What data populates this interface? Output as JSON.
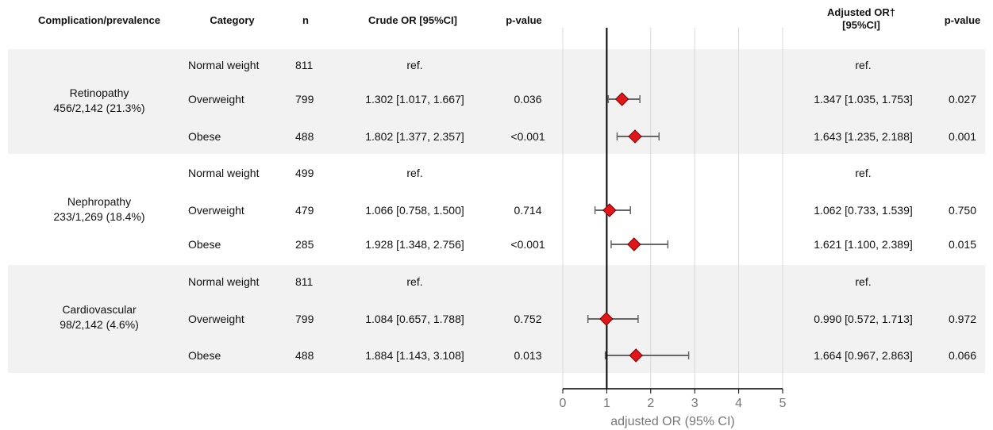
{
  "headers": {
    "complication": "Complication/prevalence",
    "category": "Category",
    "n": "n",
    "crude": "Crude OR [95%CI]",
    "crude_p": "p-value",
    "adjusted_line1": "Adjusted OR†",
    "adjusted_line2": "[95%CI]",
    "adjusted_p": "p-value"
  },
  "groups": [
    {
      "name": "Retinopathy",
      "prevalence": "456/2,142 (21.3%)",
      "rows": [
        {
          "category": "Normal weight",
          "n": "811",
          "crude": "ref.",
          "crude_p": "",
          "adjusted": "ref.",
          "adjusted_p": ""
        },
        {
          "category": "Overweight",
          "n": "799",
          "crude": "1.302 [1.017, 1.667]",
          "crude_p": "0.036",
          "adjusted": "1.347 [1.035, 1.753]",
          "adjusted_p": "0.027"
        },
        {
          "category": "Obese",
          "n": "488",
          "crude": "1.802 [1.377, 2.357]",
          "crude_p": "<0.001",
          "adjusted": "1.643 [1.235, 2.188]",
          "adjusted_p": "0.001"
        }
      ]
    },
    {
      "name": "Nephropathy",
      "prevalence": "233/1,269 (18.4%)",
      "rows": [
        {
          "category": "Normal weight",
          "n": "499",
          "crude": "ref.",
          "crude_p": "",
          "adjusted": "ref.",
          "adjusted_p": ""
        },
        {
          "category": "Overweight",
          "n": "479",
          "crude": "1.066 [0.758, 1.500]",
          "crude_p": "0.714",
          "adjusted": "1.062 [0.733, 1.539]",
          "adjusted_p": "0.750"
        },
        {
          "category": "Obese",
          "n": "285",
          "crude": "1.928 [1.348, 2.756]",
          "crude_p": "<0.001",
          "adjusted": "1.621 [1.100, 2.389]",
          "adjusted_p": "0.015"
        }
      ]
    },
    {
      "name": "Cardiovascular",
      "prevalence": "98/2,142 (4.6%)",
      "rows": [
        {
          "category": "Normal weight",
          "n": "811",
          "crude": "ref.",
          "crude_p": "",
          "adjusted": "ref.",
          "adjusted_p": ""
        },
        {
          "category": "Overweight",
          "n": "799",
          "crude": "1.084 [0.657, 1.788]",
          "crude_p": "0.752",
          "adjusted": "0.990 [0.572, 1.713]",
          "adjusted_p": "0.972"
        },
        {
          "category": "Obese",
          "n": "488",
          "crude": "1.884 [1.143, 3.108]",
          "crude_p": "0.013",
          "adjusted": "1.664 [0.967, 2.863]",
          "adjusted_p": "0.066"
        }
      ]
    }
  ],
  "chart_data": {
    "type": "scatter",
    "subtype": "forest",
    "xlabel": "adjusted OR (95% CI)",
    "xlim": [
      0,
      5
    ],
    "xticks": [
      "0",
      "1",
      "2",
      "3",
      "4",
      "5"
    ],
    "reference_line": 1,
    "grid": "vertical",
    "colors": {
      "marker": "#e0161b",
      "marker_edge": "#7a0000",
      "whisker": "#666666",
      "band": "#f2f2f2"
    },
    "points": [
      {
        "group": "Retinopathy",
        "category": "Overweight",
        "or": 1.347,
        "lo": 1.035,
        "hi": 1.753
      },
      {
        "group": "Retinopathy",
        "category": "Obese",
        "or": 1.643,
        "lo": 1.235,
        "hi": 2.188
      },
      {
        "group": "Nephropathy",
        "category": "Overweight",
        "or": 1.062,
        "lo": 0.733,
        "hi": 1.539
      },
      {
        "group": "Nephropathy",
        "category": "Obese",
        "or": 1.621,
        "lo": 1.1,
        "hi": 2.389
      },
      {
        "group": "Cardiovascular",
        "category": "Overweight",
        "or": 0.99,
        "lo": 0.572,
        "hi": 1.713
      },
      {
        "group": "Cardiovascular",
        "category": "Obese",
        "or": 1.664,
        "lo": 0.967,
        "hi": 2.863
      }
    ]
  }
}
